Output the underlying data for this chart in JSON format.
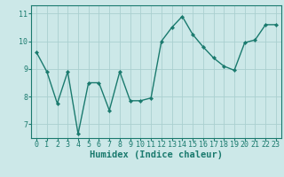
{
  "x": [
    0,
    1,
    2,
    3,
    4,
    5,
    6,
    7,
    8,
    9,
    10,
    11,
    12,
    13,
    14,
    15,
    16,
    17,
    18,
    19,
    20,
    21,
    22,
    23
  ],
  "y": [
    9.6,
    8.9,
    7.75,
    8.9,
    6.65,
    8.5,
    8.5,
    7.5,
    8.9,
    7.85,
    7.85,
    7.95,
    10.0,
    10.5,
    10.9,
    10.25,
    9.8,
    9.4,
    9.1,
    8.95,
    9.95,
    10.05,
    10.6,
    10.6
  ],
  "line_color": "#1a7a6e",
  "marker": "D",
  "marker_size": 2.2,
  "line_width": 1.0,
  "bg_color": "#cce8e8",
  "grid_color": "#aacfcf",
  "xlabel": "Humidex (Indice chaleur)",
  "xlabel_fontsize": 7.5,
  "tick_fontsize": 6.0,
  "xlim": [
    -0.5,
    23.5
  ],
  "ylim": [
    6.5,
    11.3
  ],
  "yticks": [
    7,
    8,
    9,
    10,
    11
  ],
  "xticks": [
    0,
    1,
    2,
    3,
    4,
    5,
    6,
    7,
    8,
    9,
    10,
    11,
    12,
    13,
    14,
    15,
    16,
    17,
    18,
    19,
    20,
    21,
    22,
    23
  ]
}
